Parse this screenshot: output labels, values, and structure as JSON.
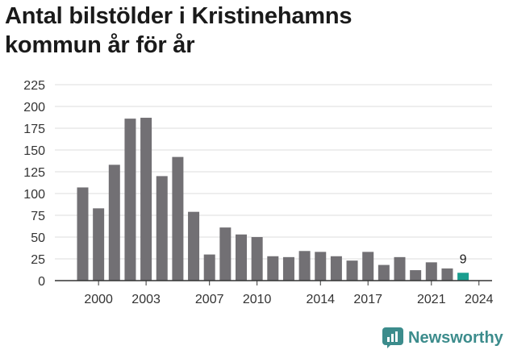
{
  "title_line1": "Antal bilstölder i Kristinehamns",
  "title_line2": "kommun år för år",
  "brand": {
    "name": "Newsworthy",
    "color": "#3c8c8c",
    "icon": "bar-chart-speech-bubble-icon"
  },
  "chart_data": {
    "type": "bar",
    "title": "Antal bilstölder i Kristinehamns kommun år för år",
    "xlabel": "",
    "ylabel": "",
    "categories": [
      1999,
      2000,
      2001,
      2002,
      2003,
      2004,
      2005,
      2006,
      2007,
      2008,
      2009,
      2010,
      2011,
      2012,
      2013,
      2014,
      2015,
      2016,
      2017,
      2018,
      2019,
      2020,
      2021,
      2022,
      2023
    ],
    "values": [
      107,
      83,
      133,
      186,
      187,
      120,
      142,
      79,
      30,
      61,
      53,
      50,
      28,
      27,
      34,
      33,
      28,
      23,
      33,
      18,
      27,
      12,
      21,
      14,
      9
    ],
    "x_tick_labels": [
      "2000",
      "2003",
      "2007",
      "2010",
      "2014",
      "2017",
      "2021",
      "2024"
    ],
    "y_ticks": [
      0,
      25,
      50,
      75,
      100,
      125,
      150,
      175,
      200,
      225
    ],
    "ylim": [
      0,
      225
    ],
    "grid": true,
    "highlight": {
      "index": 24,
      "label": "9"
    },
    "colors": {
      "bar": "#727074",
      "highlight": "#1a9e8f",
      "grid": "#dddddd",
      "axis": "#333333"
    }
  }
}
